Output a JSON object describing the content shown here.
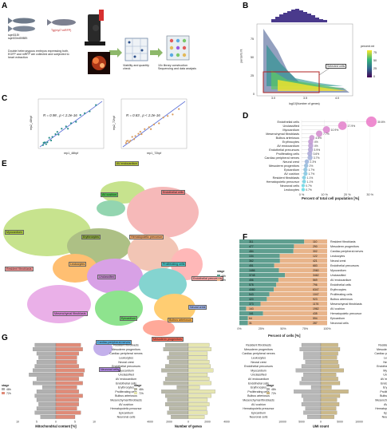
{
  "panel_labels": {
    "a": "A",
    "b": "B",
    "c": "C",
    "d": "D",
    "e": "E",
    "f": "F",
    "g": "G"
  },
  "panel_a": {
    "fish_label": "sqet31Et\nsqet33mi59BEt",
    "cross_label": "Tg(myl7:mRFP)",
    "description": "Double heterozygous embryos expressing both,\nEGFP and mRFP are collected and subjected to\nheart extraction",
    "step_viability": "Viability and quantity\ncheck",
    "step_library": "10x library construction\nSequencing and data analysis"
  },
  "panel_b": {
    "xlabel": "log10(Number of genes)",
    "ylabel": "percent.mt",
    "legend_title": "percent.mt",
    "annotation": "Selected cells",
    "xticks": [
      "3.0",
      "3.5",
      "4.0"
    ],
    "yticks": [
      "0",
      "25",
      "50",
      "75"
    ],
    "legend_ticks": [
      "0",
      "25",
      "50",
      "75"
    ]
  },
  "panel_c": {
    "left": {
      "annot": "R = 0.98 , p < 2.2e-16",
      "xlabel": "rep1_48hpf",
      "ylabel": "rep2_48hpf",
      "color": "#2a8f8a"
    },
    "right": {
      "annot": "R = 0.83 , p < 2.2e-16",
      "xlabel": "rep1_72hpf",
      "ylabel": "rep2_72hpf",
      "color": "#d89a5a"
    }
  },
  "panel_e": {
    "clusters": [
      "AV endocardium",
      "AV cushion",
      "Endothelial cells",
      "Myocardium",
      "Erythrocytes",
      "Hematopoietic precursor",
      "Resident fibroblasts",
      "Leukocytes",
      "Unclassified",
      "Proliferating cells",
      "Endothelial precursors",
      "Mesenchymal fibroblasts",
      "Epicardium",
      "Neural crest",
      "Bulbus arteriosus",
      "Cardiac peripheral nerves",
      "Mesoderm progenitors",
      "Neuronal cells"
    ]
  },
  "panel_f": {
    "xlabel": "Percent of cells [%]",
    "xticks": [
      "0%",
      "25%",
      "50%",
      "75%",
      "100%"
    ],
    "legend_title": "stage",
    "legend_items": [
      "48h",
      "72h"
    ]
  },
  "panel_g": {
    "plots": [
      {
        "xlabel": "Mitochondrial content [%]",
        "xticks": [
          "10",
          "5",
          "0",
          "5",
          "10"
        ]
      },
      {
        "xlabel": "Number of genes",
        "xticks": [
          "4000",
          "2000",
          "0",
          "2000",
          "4000"
        ]
      },
      {
        "xlabel": "UMI count",
        "xticks": [
          "10000",
          "5000",
          "0",
          "5000",
          "10000"
        ]
      }
    ],
    "legend_title": "stage",
    "legend_items": [
      "48h",
      "72h"
    ],
    "colors_48h": [
      "#b0b0b0",
      "#b8b8a8",
      "#b7b7b7"
    ],
    "colors_72h": [
      "#e08b78",
      "#e6e6b0",
      "#cbb98a"
    ],
    "categories": [
      "Resident fibroblasts",
      "Mesoderm progenitors",
      "Cardiac peripheral nerves",
      "Leukocytes",
      "Neural crest",
      "Endothelial precursors",
      "Myocardium",
      "Unclassified",
      "AV endocardium",
      "Endothelial cells",
      "Erythrocytes",
      "Proliferating cells",
      "Bulbus arteriosus",
      "Mesenchymal fibroblasts",
      "AV cushion",
      "Hematopoietic precursor",
      "Epicardium",
      "Neuronal cells"
    ]
  },
  "chart_data": [
    {
      "type": "scatter",
      "panel": "D",
      "xlabel": "Percent of total cell population [%]",
      "xlim": [
        0,
        35
      ],
      "xticks": [
        "0 %",
        "10 %",
        "20 %",
        "30 %"
      ],
      "categories": [
        "Endothelial cells",
        "Unclassified",
        "Myocardium",
        "Mesenchymal fibroblasts",
        "Bulbus arteriosus",
        "Erythrocytes",
        "AV endocardium",
        "Endothelial precursors",
        "Proliferating cells",
        "Cardiac peripheral nerves",
        "Neural crest",
        "Mesoderm progenitors",
        "Epicardium",
        "AV cushion",
        "Resident fibroblasts",
        "Hematopoietic precursor",
        "Neuronal cells",
        "Leukocytes"
      ],
      "values": [
        30.6,
        17.9,
        10.9,
        7.7,
        4.5,
        4.0,
        4.0,
        3.9,
        3.6,
        3.7,
        2.3,
        2.0,
        1.7,
        1.7,
        1.1,
        1.1,
        0.7,
        0.7
      ],
      "labels": [
        "30.6%",
        "17.9%",
        "10.9%",
        "7.7%",
        "4.5%",
        "4%",
        "4%",
        "3.9%",
        "3.6%",
        "3.7%",
        "2.3%",
        "2%",
        "1.7%",
        "1.7%",
        "1.1%",
        "1.1%",
        "0.7%",
        "0.7%"
      ]
    },
    {
      "type": "bar",
      "panel": "F",
      "stacked_percent": true,
      "categories": [
        "Resident fibroblasts",
        "Mesoderm progenitors",
        "Cardiac peripheral nerves",
        "Leukocytes",
        "Neural crest",
        "Endothelial precursors",
        "Myocardium",
        "Unclassified",
        "AV endocardium",
        "Endothelial cells",
        "Erythrocytes",
        "Proliferating cells",
        "Bulbus arteriosus",
        "Mesenchymal fibroblasts",
        "AV cushion",
        "Hematopoietic precursor",
        "Epicardium",
        "Neuronal cells"
      ],
      "series": [
        {
          "name": "48h",
          "color": "#5f9e8f",
          "values": [
            311,
            477,
            484,
            104,
            362,
            451,
            1686,
            3748,
            456,
            578,
            4080,
            543,
            420,
            373,
            163,
            161,
            64,
            31
          ]
        },
        {
          "name": "72h",
          "color": "#e8b48a",
          "values": [
            110,
            290,
            302,
            122,
            421,
            683,
            2060,
            3462,
            569,
            796,
            6347,
            1047,
            923,
            1176,
            1962,
            435,
            594,
            287
          ]
        }
      ]
    }
  ]
}
